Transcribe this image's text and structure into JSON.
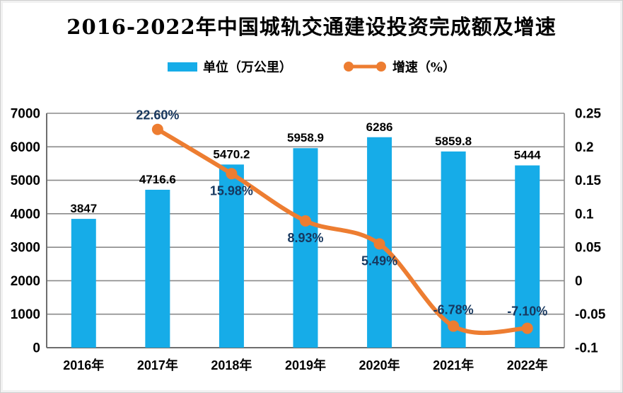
{
  "chart_data": {
    "type": "combo-bar-line",
    "title": "2016-2022年中国城轨交通建设投资完成额及增速",
    "categories": [
      "2016年",
      "2017年",
      "2018年",
      "2019年",
      "2020年",
      "2021年",
      "2022年"
    ],
    "series": [
      {
        "name": "单位（万公里）",
        "type": "bar",
        "color": "#16ACE8",
        "values": [
          3847,
          4716.6,
          5470.2,
          5958.9,
          6286,
          5859.8,
          5444
        ],
        "labels": [
          "3847",
          "4716.6",
          "5470.2",
          "5958.9",
          "6286",
          "5859.8",
          "5444"
        ]
      },
      {
        "name": "增速（%）",
        "type": "line",
        "color": "#ED7D31",
        "values": [
          null,
          0.226,
          0.1598,
          0.0893,
          0.0549,
          -0.0678,
          -0.071
        ],
        "labels": [
          "",
          "22.60%",
          "15.98%",
          "8.93%",
          "5.49%",
          "-6.78%",
          "-7.10%"
        ]
      }
    ],
    "left_axis": {
      "min": 0,
      "max": 7000,
      "step": 1000,
      "ticks": [
        "0",
        "1000",
        "2000",
        "3000",
        "4000",
        "5000",
        "6000",
        "7000"
      ]
    },
    "right_axis": {
      "min": -0.1,
      "max": 0.25,
      "step": 0.05,
      "ticks": [
        "-0.1",
        "-0.05",
        "0",
        "0.05",
        "0.1",
        "0.15",
        "0.2",
        "0.25"
      ]
    },
    "layout": {
      "legend_position": "top",
      "grid": true,
      "smooth_line": true,
      "line_label_offsets": [
        0,
        -14,
        30,
        30,
        30,
        -17,
        -18
      ]
    },
    "colors": {
      "bar": "#16ACE8",
      "line": "#ED7D31",
      "percent_label": "#17375E",
      "value_label": "#000000",
      "grid": "#8A8A8A",
      "axis": "#6E6E6E",
      "text": "#000000"
    }
  }
}
